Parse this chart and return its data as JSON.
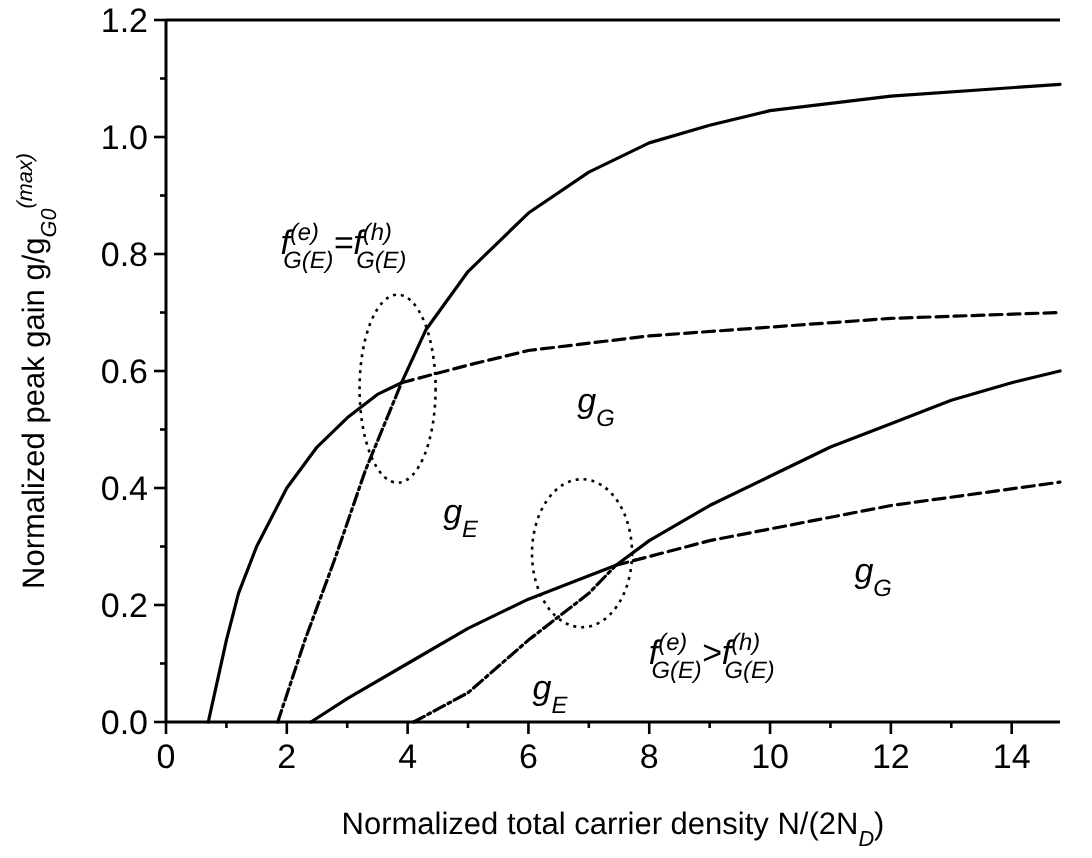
{
  "chart_data": {
    "type": "line",
    "xlabel": "Normalized total carrier density N/(2N$_{D}$)",
    "ylabel": "Normalized peak gain g/g$_{G0}$$^{(max)}$",
    "xlim": [
      0,
      14.8
    ],
    "ylim": [
      0,
      1.2
    ],
    "xticks": [
      0,
      {
        "value": 1,
        "label": null
      },
      2,
      {
        "value": 3,
        "label": null
      },
      4,
      {
        "value": 5,
        "label": null
      },
      6,
      {
        "value": 7,
        "label": null
      },
      8,
      {
        "value": 9,
        "label": null
      },
      10,
      {
        "value": 11,
        "label": null
      },
      12,
      {
        "value": 13,
        "label": null
      },
      14
    ],
    "yticks": [
      {
        "value": 0,
        "label": "0.0"
      },
      {
        "value": 0.1,
        "label": null
      },
      {
        "value": 0.2,
        "label": "0.2"
      },
      {
        "value": 0.3,
        "label": null
      },
      {
        "value": 0.4,
        "label": "0.4"
      },
      {
        "value": 0.5,
        "label": null
      },
      {
        "value": 0.6,
        "label": "0.6"
      },
      {
        "value": 0.7,
        "label": null
      },
      {
        "value": 0.8,
        "label": "0.8"
      },
      {
        "value": 0.9,
        "label": null
      },
      {
        "value": 1.0,
        "label": "1.0"
      },
      {
        "value": 1.1,
        "label": null
      },
      {
        "value": 1.2,
        "label": "1.2"
      }
    ],
    "grid": false,
    "marker": "none",
    "series": [
      {
        "color": "#000000",
        "line_style": "solid",
        "x": [
          0.7,
          0.85,
          1,
          1.2,
          1.5,
          2,
          2.5,
          3,
          3.5,
          3.9,
          4.3,
          5,
          6,
          7,
          8,
          9,
          10,
          12,
          14.8
        ],
        "values": [
          0,
          0.07,
          0.14,
          0.22,
          0.3,
          0.4,
          0.47,
          0.52,
          0.56,
          0.58,
          0.67,
          0.77,
          0.87,
          0.94,
          0.99,
          1.02,
          1.045,
          1.07,
          1.09
        ]
      },
      {
        "color": "#000000",
        "line_style": "dashdot",
        "x": [
          1.85,
          2.3,
          2.8,
          3.3,
          3.9
        ],
        "values": [
          0,
          0.14,
          0.28,
          0.43,
          0.58
        ]
      },
      {
        "color": "#000000",
        "line_style": "dashed",
        "x": [
          3.9,
          5,
          6,
          8,
          10,
          12,
          14.8
        ],
        "values": [
          0.58,
          0.61,
          0.635,
          0.66,
          0.675,
          0.69,
          0.7
        ]
      },
      {
        "color": "#000000",
        "line_style": "solid",
        "x": [
          2.4,
          3,
          4,
          5,
          6,
          7,
          7.45,
          8,
          9,
          10,
          11,
          12,
          13,
          14,
          14.8
        ],
        "values": [
          0,
          0.04,
          0.1,
          0.16,
          0.21,
          0.25,
          0.268,
          0.31,
          0.37,
          0.42,
          0.47,
          0.51,
          0.55,
          0.58,
          0.6
        ]
      },
      {
        "color": "#000000",
        "line_style": "dashdot",
        "x": [
          4.1,
          5,
          6,
          6.5,
          7,
          7.45
        ],
        "values": [
          0,
          0.05,
          0.14,
          0.18,
          0.22,
          0.268
        ]
      },
      {
        "color": "#000000",
        "line_style": "dashed",
        "x": [
          7.45,
          9,
          10,
          12,
          14.8
        ],
        "values": [
          0.268,
          0.31,
          0.33,
          0.37,
          0.41
        ]
      }
    ],
    "annotations": [
      "f$^{(e)}$$_{G(E)}$=f$^{(h)}$$_{G(E)}$",
      "g$_{G}$",
      "g$_{E}$",
      "g$_{G}$",
      "f$^{(e)}$$_{G(E)}$>f$^{(h)}$$_{G(E)}$",
      "g$_{E}$"
    ]
  }
}
